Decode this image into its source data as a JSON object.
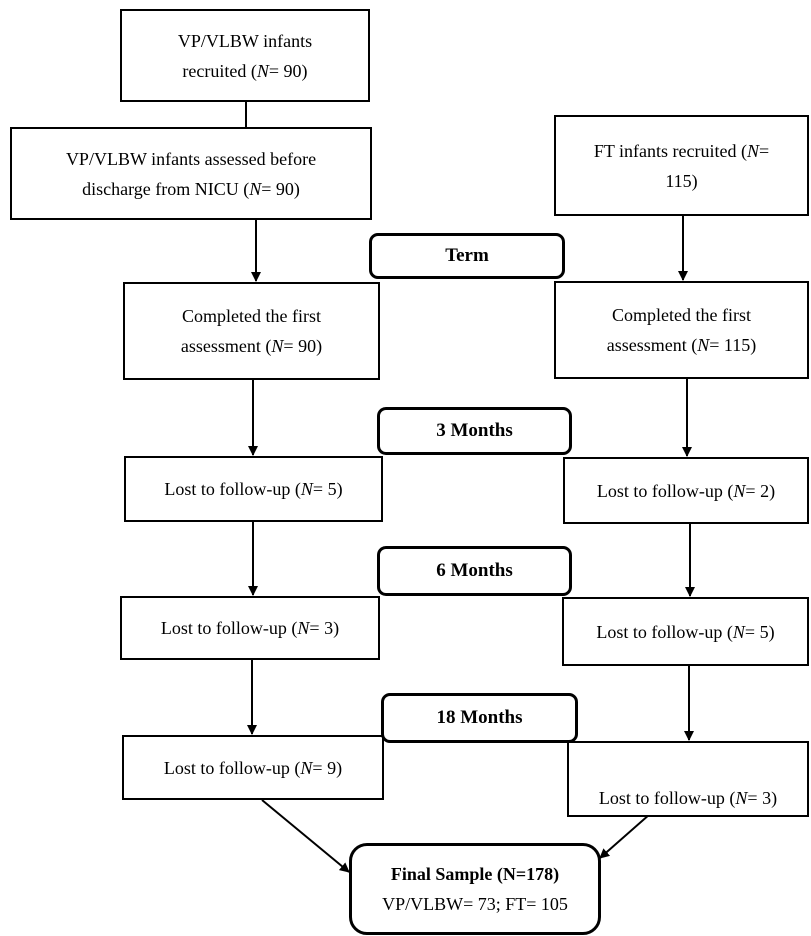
{
  "preterm_column": {
    "recruited": {
      "line1": "VP/VLBW infants",
      "line2_pre": "recruited (",
      "n_label": "N",
      "value": "= 90)"
    },
    "assessed": {
      "line1": "VP/VLBW infants assessed before",
      "line2_pre": "discharge from NICU (",
      "n_label": "N",
      "value": "= 90)"
    },
    "first_assessment": {
      "line1": "Completed the first",
      "line2_pre": "assessment (",
      "n_label": "N",
      "value": "= 90)"
    },
    "lost_3m": {
      "pre": "Lost to follow-up (",
      "n_label": "N",
      "value": "= 5)"
    },
    "lost_6m": {
      "pre": "Lost to follow-up (",
      "n_label": "N",
      "value": "= 3)"
    },
    "lost_18m": {
      "pre": "Lost to follow-up (",
      "n_label": "N",
      "value": "= 9)"
    }
  },
  "fullterm_column": {
    "recruited": {
      "line1_pre": "FT infants recruited (",
      "n_label": "N",
      "line1_post": "=",
      "line2": "115)"
    },
    "first_assessment": {
      "line1": "Completed the first",
      "line2_pre": "assessment (",
      "n_label": "N",
      "value": "= 115)"
    },
    "lost_3m": {
      "pre": "Lost to follow-up (",
      "n_label": "N",
      "value": "= 2)"
    },
    "lost_6m": {
      "pre": "Lost to follow-up (",
      "n_label": "N",
      "value": "= 5)"
    },
    "lost_18m": {
      "pre": "Lost to follow-up (",
      "n_label": "N",
      "value": "= 3)"
    }
  },
  "stages": {
    "term": "Term",
    "m3": "3 Months",
    "m6": "6 Months",
    "m18": "18 Months"
  },
  "final_sample": {
    "title": "Final Sample (N=178)",
    "detail": "VP/VLBW= 73; FT= 105"
  }
}
